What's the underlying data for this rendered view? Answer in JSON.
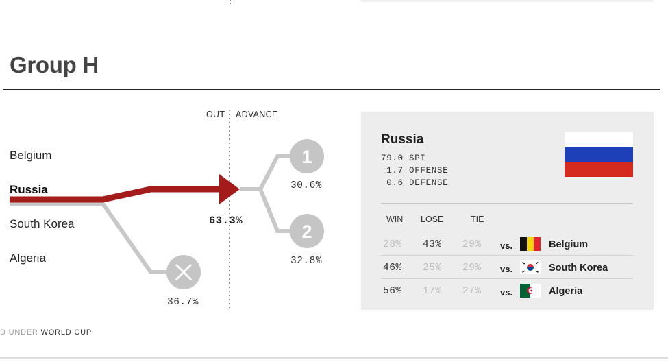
{
  "group": {
    "title": "Group H"
  },
  "bracket": {
    "out_label": "OUT",
    "advance_label": "ADVANCE",
    "teams": [
      "Belgium",
      "Russia",
      "South Korea",
      "Algeria"
    ],
    "selected_team": "Russia",
    "advance_pct": "63.3%",
    "first_place": {
      "badge": "1",
      "pct": "30.6%"
    },
    "second_place": {
      "badge": "2",
      "pct": "32.8%"
    },
    "eliminated": {
      "pct": "36.7%"
    },
    "colors": {
      "selected": "#a31b1b",
      "other": "#c8c8c8",
      "node": "#c5c5c5"
    }
  },
  "panel": {
    "team": "Russia",
    "spi": "79.0 SPI",
    "offense": " 1.7 OFFENSE",
    "defense": " 0.6 DEFENSE",
    "headers": {
      "win": "WIN",
      "lose": "LOSE",
      "tie": "TIE"
    },
    "matches": [
      {
        "win": "28%",
        "lose": "43%",
        "tie": "29%",
        "vs": "vs.",
        "opponent": "Belgium",
        "flag": "belgium-flag"
      },
      {
        "win": "46%",
        "lose": "25%",
        "tie": "29%",
        "vs": "vs.",
        "opponent": "South Korea",
        "flag": "south-korea-flag"
      },
      {
        "win": "56%",
        "lose": "17%",
        "tie": "27%",
        "vs": "vs.",
        "opponent": "Algeria",
        "flag": "algeria-flag"
      }
    ]
  },
  "footer": {
    "prefix": "D UNDER",
    "link": "WORLD CUP"
  }
}
